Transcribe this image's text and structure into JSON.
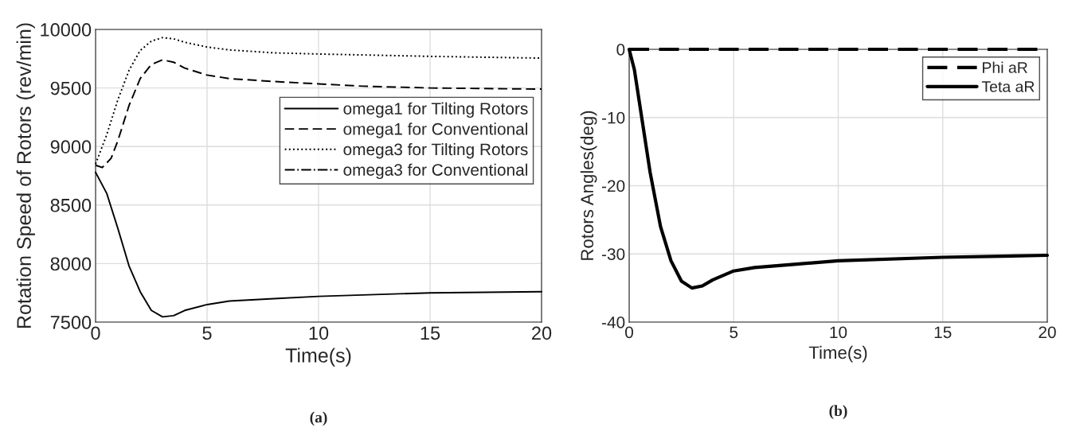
{
  "chart_data": [
    {
      "type": "line",
      "xlabel": "Time(s)",
      "ylabel": "Rotation Speed of Rotors (rev/min)",
      "xlim": [
        0,
        20
      ],
      "ylim": [
        7500,
        10000
      ],
      "xticks": [
        0,
        5,
        10,
        15,
        20
      ],
      "yticks": [
        7500,
        8000,
        8500,
        9000,
        9500,
        10000
      ],
      "grid": true,
      "legend": "right",
      "annotations": [
        "(a)"
      ],
      "series": [
        {
          "name": "omega1 for Tilting Rotors",
          "color": "#000000",
          "line_style": "solid",
          "x": [
            0,
            0.5,
            1,
            1.5,
            2,
            2.5,
            3,
            3.5,
            4,
            5,
            6,
            8,
            10,
            15,
            20
          ],
          "values": [
            8780,
            8600,
            8300,
            7980,
            7760,
            7600,
            7545,
            7555,
            7600,
            7650,
            7680,
            7700,
            7720,
            7750,
            7760
          ]
        },
        {
          "name": "omega1 for Conventional",
          "color": "#000000",
          "line_style": "dashed",
          "x": [
            0,
            0.3,
            0.7,
            1,
            1.5,
            2,
            2.5,
            3,
            3.5,
            4,
            5,
            6,
            8,
            10,
            12,
            15,
            20
          ],
          "values": [
            8840,
            8820,
            8900,
            9050,
            9350,
            9580,
            9700,
            9740,
            9720,
            9670,
            9610,
            9580,
            9555,
            9535,
            9515,
            9500,
            9490
          ]
        },
        {
          "name": "omega3 for Tilting Rotors",
          "color": "#000000",
          "line_style": "dotted",
          "x": [
            0,
            0.5,
            1,
            1.5,
            2,
            2.5,
            3,
            3.5,
            4,
            5,
            6,
            8,
            10,
            15,
            20
          ],
          "values": [
            8850,
            9100,
            9400,
            9650,
            9820,
            9900,
            9930,
            9920,
            9890,
            9850,
            9825,
            9800,
            9790,
            9770,
            9755
          ]
        },
        {
          "name": "omega3 for Conventional",
          "color": "#000000",
          "line_style": "dashdot"
        }
      ]
    },
    {
      "type": "line",
      "xlabel": "Time(s)",
      "ylabel": "Rotors Angles(deg)",
      "xlim": [
        0,
        20
      ],
      "ylim": [
        -40,
        0
      ],
      "xticks": [
        0,
        5,
        10,
        15,
        20
      ],
      "yticks": [
        -40,
        -30,
        -20,
        -10,
        0
      ],
      "grid": true,
      "legend": "top right",
      "annotations": [
        "(b)"
      ],
      "series": [
        {
          "name": "Phi aR",
          "color": "#000000",
          "line_style": "dashed",
          "x": [
            0,
            20
          ],
          "values": [
            0,
            0
          ]
        },
        {
          "name": "Teta aR",
          "color": "#000000",
          "line_style": "solid",
          "x": [
            0,
            0.25,
            0.5,
            1,
            1.5,
            2,
            2.5,
            3,
            3.5,
            4,
            5,
            6,
            8,
            10,
            15,
            20
          ],
          "values": [
            0,
            -3,
            -8,
            -18,
            -26,
            -31,
            -34,
            -35,
            -34.7,
            -33.8,
            -32.5,
            -32,
            -31.5,
            -31,
            -30.5,
            -30.2
          ]
        }
      ]
    }
  ]
}
